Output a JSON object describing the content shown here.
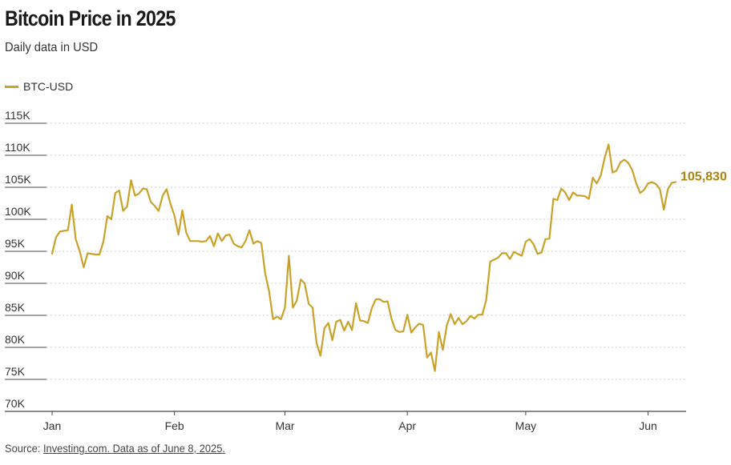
{
  "title": "Bitcoin Price in 2025",
  "subtitle": "Daily data in USD",
  "source_prefix": "Source: ",
  "source_link": "Investing.com. Data as of June 8, 2025.",
  "colors": {
    "line": "#c9a227",
    "end_label": "#a88512",
    "grid": "#cccccc",
    "axis": "#444444"
  },
  "chart_data": {
    "type": "line",
    "title": "Bitcoin Price in 2025",
    "subtitle": "Daily data in USD",
    "xlabel": "",
    "ylabel": "",
    "ylim": [
      70000,
      115000
    ],
    "y_ticks": [
      70000,
      75000,
      80000,
      85000,
      90000,
      95000,
      100000,
      105000,
      110000,
      115000
    ],
    "y_tick_labels": [
      "70K",
      "75K",
      "80K",
      "85K",
      "90K",
      "95K",
      "100K",
      "105K",
      "110K",
      "115K"
    ],
    "x_ticks": [
      "2025-01-01",
      "2025-02-01",
      "2025-03-01",
      "2025-04-01",
      "2025-05-01",
      "2025-06-01"
    ],
    "x_tick_labels": [
      "Jan",
      "Feb",
      "Mar",
      "Apr",
      "May",
      "Jun"
    ],
    "grid": "horizontal dotted",
    "legend": "top-left",
    "end_label": "105,830",
    "series": [
      {
        "name": "BTC-USD",
        "x": [
          "2025-01-01",
          "2025-01-02",
          "2025-01-03",
          "2025-01-04",
          "2025-01-05",
          "2025-01-06",
          "2025-01-07",
          "2025-01-08",
          "2025-01-09",
          "2025-01-10",
          "2025-01-11",
          "2025-01-12",
          "2025-01-13",
          "2025-01-14",
          "2025-01-15",
          "2025-01-16",
          "2025-01-17",
          "2025-01-18",
          "2025-01-19",
          "2025-01-20",
          "2025-01-21",
          "2025-01-22",
          "2025-01-23",
          "2025-01-24",
          "2025-01-25",
          "2025-01-26",
          "2025-01-27",
          "2025-01-28",
          "2025-01-29",
          "2025-01-30",
          "2025-01-31",
          "2025-02-01",
          "2025-02-02",
          "2025-02-03",
          "2025-02-04",
          "2025-02-05",
          "2025-02-06",
          "2025-02-07",
          "2025-02-08",
          "2025-02-09",
          "2025-02-10",
          "2025-02-11",
          "2025-02-12",
          "2025-02-13",
          "2025-02-14",
          "2025-02-15",
          "2025-02-16",
          "2025-02-17",
          "2025-02-18",
          "2025-02-19",
          "2025-02-20",
          "2025-02-21",
          "2025-02-22",
          "2025-02-23",
          "2025-02-24",
          "2025-02-25",
          "2025-02-26",
          "2025-02-27",
          "2025-02-28",
          "2025-03-01",
          "2025-03-02",
          "2025-03-03",
          "2025-03-04",
          "2025-03-05",
          "2025-03-06",
          "2025-03-07",
          "2025-03-08",
          "2025-03-09",
          "2025-03-10",
          "2025-03-11",
          "2025-03-12",
          "2025-03-13",
          "2025-03-14",
          "2025-03-15",
          "2025-03-16",
          "2025-03-17",
          "2025-03-18",
          "2025-03-19",
          "2025-03-20",
          "2025-03-21",
          "2025-03-22",
          "2025-03-23",
          "2025-03-24",
          "2025-03-25",
          "2025-03-26",
          "2025-03-27",
          "2025-03-28",
          "2025-03-29",
          "2025-03-30",
          "2025-03-31",
          "2025-04-01",
          "2025-04-02",
          "2025-04-03",
          "2025-04-04",
          "2025-04-05",
          "2025-04-06",
          "2025-04-07",
          "2025-04-08",
          "2025-04-09",
          "2025-04-10",
          "2025-04-11",
          "2025-04-12",
          "2025-04-13",
          "2025-04-14",
          "2025-04-15",
          "2025-04-16",
          "2025-04-17",
          "2025-04-18",
          "2025-04-19",
          "2025-04-20",
          "2025-04-21",
          "2025-04-22",
          "2025-04-23",
          "2025-04-24",
          "2025-04-25",
          "2025-04-26",
          "2025-04-27",
          "2025-04-28",
          "2025-04-29",
          "2025-04-30",
          "2025-05-01",
          "2025-05-02",
          "2025-05-03",
          "2025-05-04",
          "2025-05-05",
          "2025-05-06",
          "2025-05-07",
          "2025-05-08",
          "2025-05-09",
          "2025-05-10",
          "2025-05-11",
          "2025-05-12",
          "2025-05-13",
          "2025-05-14",
          "2025-05-15",
          "2025-05-16",
          "2025-05-17",
          "2025-05-18",
          "2025-05-19",
          "2025-05-20",
          "2025-05-21",
          "2025-05-22",
          "2025-05-23",
          "2025-05-24",
          "2025-05-25",
          "2025-05-26",
          "2025-05-27",
          "2025-05-28",
          "2025-05-29",
          "2025-05-30",
          "2025-05-31",
          "2025-06-01",
          "2025-06-02",
          "2025-06-03",
          "2025-06-04",
          "2025-06-05",
          "2025-06-06",
          "2025-06-07",
          "2025-06-08"
        ],
        "values": [
          94600,
          97200,
          98100,
          98200,
          98300,
          102300,
          96900,
          95000,
          92500,
          94700,
          94600,
          94500,
          94500,
          96500,
          100500,
          100000,
          104100,
          104500,
          101300,
          102000,
          106100,
          103700,
          104000,
          104800,
          104700,
          102700,
          102100,
          101300,
          103700,
          104700,
          102400,
          100600,
          97600,
          101400,
          97900,
          96600,
          96600,
          96600,
          96500,
          96600,
          97400,
          95800,
          97800,
          96600,
          97500,
          97600,
          96200,
          95800,
          95600,
          96600,
          98300,
          96200,
          96600,
          96300,
          91500,
          88700,
          84400,
          84800,
          84400,
          86200,
          94300,
          86200,
          87300,
          90600,
          90000,
          86800,
          86200,
          80700,
          78700,
          83000,
          83800,
          81100,
          84000,
          84300,
          82600,
          84000,
          82700,
          86900,
          84200,
          84100,
          83800,
          86100,
          87500,
          87500,
          87100,
          87200,
          84400,
          82700,
          82400,
          82500,
          85100,
          82300,
          83100,
          83700,
          83500,
          78400,
          79200,
          76300,
          82400,
          79600,
          83400,
          85200,
          83600,
          84600,
          83600,
          84100,
          84900,
          84500,
          85100,
          85100,
          87400,
          93400,
          93700,
          94000,
          94700,
          94700,
          93800,
          94900,
          94600,
          94300,
          96500,
          96900,
          96100,
          94600,
          94800,
          96900,
          97000,
          103200,
          103000,
          104800,
          104200,
          103000,
          104200,
          103700,
          103700,
          103600,
          103200,
          106500,
          105600,
          106800,
          109600,
          111700,
          107300,
          107600,
          108900,
          109300,
          108800,
          107700,
          105600,
          104100,
          104600,
          105600,
          105800,
          105500,
          104700,
          101500,
          104700,
          105700,
          105830
        ]
      }
    ]
  }
}
